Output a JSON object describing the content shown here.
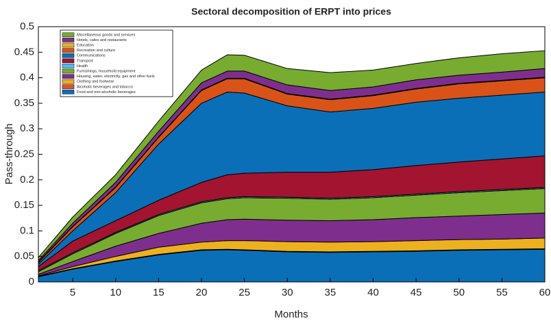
{
  "chart_data": {
    "type": "stacked_area",
    "title": "Sectoral decomposition of ERPT into prices",
    "xlabel": "Months",
    "ylabel": "Pass-through",
    "x": [
      1,
      5,
      10,
      15,
      20,
      23,
      25,
      30,
      35,
      40,
      45,
      50,
      55,
      60
    ],
    "xlim": [
      1,
      60
    ],
    "xticks": [
      5,
      10,
      15,
      20,
      25,
      30,
      35,
      40,
      45,
      50,
      55,
      60
    ],
    "ylim": [
      0,
      0.5
    ],
    "yticks": [
      0,
      0.05,
      0.1,
      0.15,
      0.2,
      0.25,
      0.3,
      0.35,
      0.4,
      0.45,
      0.5
    ],
    "legend": "upper left",
    "series": [
      {
        "name": "Food and non-alcoholic beverages",
        "color": "#0b6fb8",
        "values": [
          0.01,
          0.025,
          0.04,
          0.053,
          0.062,
          0.063,
          0.062,
          0.059,
          0.058,
          0.059,
          0.06,
          0.062,
          0.063,
          0.064
        ]
      },
      {
        "name": "Alcoholic beverages and tobacco",
        "color": "#e0522a",
        "values": [
          0.001,
          0.001,
          0.001,
          0.001,
          0.001,
          0.001,
          0.001,
          0.001,
          0.001,
          0.001,
          0.001,
          0.001,
          0.001,
          0.001
        ]
      },
      {
        "name": "Clothing and footwear",
        "color": "#edb120",
        "values": [
          0.001,
          0.004,
          0.009,
          0.014,
          0.015,
          0.017,
          0.018,
          0.019,
          0.019,
          0.019,
          0.02,
          0.02,
          0.02,
          0.021
        ]
      },
      {
        "name": "Housing, water, electricity, gas and other fuels",
        "color": "#7e2f8e",
        "values": [
          0.003,
          0.01,
          0.02,
          0.027,
          0.037,
          0.041,
          0.042,
          0.042,
          0.042,
          0.043,
          0.045,
          0.046,
          0.048,
          0.049
        ]
      },
      {
        "name": "Furnishings, household equipment",
        "color": "#77ac30",
        "values": [
          0.005,
          0.015,
          0.025,
          0.035,
          0.04,
          0.041,
          0.042,
          0.043,
          0.042,
          0.043,
          0.044,
          0.046,
          0.047,
          0.048
        ]
      },
      {
        "name": "Health",
        "color": "#4dbeee",
        "values": [
          0.002,
          0.002,
          0.002,
          0.002,
          0.002,
          0.002,
          0.002,
          0.002,
          0.002,
          0.002,
          0.002,
          0.002,
          0.002,
          0.002
        ]
      },
      {
        "name": "Transport",
        "color": "#a2142f",
        "values": [
          0.008,
          0.023,
          0.023,
          0.028,
          0.038,
          0.045,
          0.046,
          0.049,
          0.051,
          0.053,
          0.056,
          0.058,
          0.06,
          0.062
        ]
      },
      {
        "name": "Communications",
        "color": "#0b6fb8",
        "values": [
          0.005,
          0.02,
          0.055,
          0.11,
          0.155,
          0.162,
          0.157,
          0.13,
          0.118,
          0.12,
          0.124,
          0.125,
          0.125,
          0.125
        ]
      },
      {
        "name": "Recreation and culture",
        "color": "#d95319",
        "values": [
          0.003,
          0.008,
          0.01,
          0.013,
          0.025,
          0.026,
          0.028,
          0.023,
          0.024,
          0.025,
          0.026,
          0.028,
          0.028,
          0.028
        ]
      },
      {
        "name": "Education",
        "color": "#edb120",
        "values": [
          0.001,
          0.001,
          0.001,
          0.001,
          0.001,
          0.001,
          0.001,
          0.001,
          0.001,
          0.001,
          0.001,
          0.001,
          0.001,
          0.001
        ]
      },
      {
        "name": "Hotels, cafes and restaurants",
        "color": "#7e2f8e",
        "values": [
          0.003,
          0.006,
          0.009,
          0.011,
          0.014,
          0.014,
          0.014,
          0.017,
          0.017,
          0.016,
          0.017,
          0.016,
          0.016,
          0.017
        ]
      },
      {
        "name": "Miscellaneous goods and services",
        "color": "#77ac30",
        "values": [
          0.006,
          0.012,
          0.015,
          0.02,
          0.025,
          0.032,
          0.031,
          0.032,
          0.035,
          0.033,
          0.032,
          0.034,
          0.036,
          0.035
        ]
      }
    ]
  }
}
